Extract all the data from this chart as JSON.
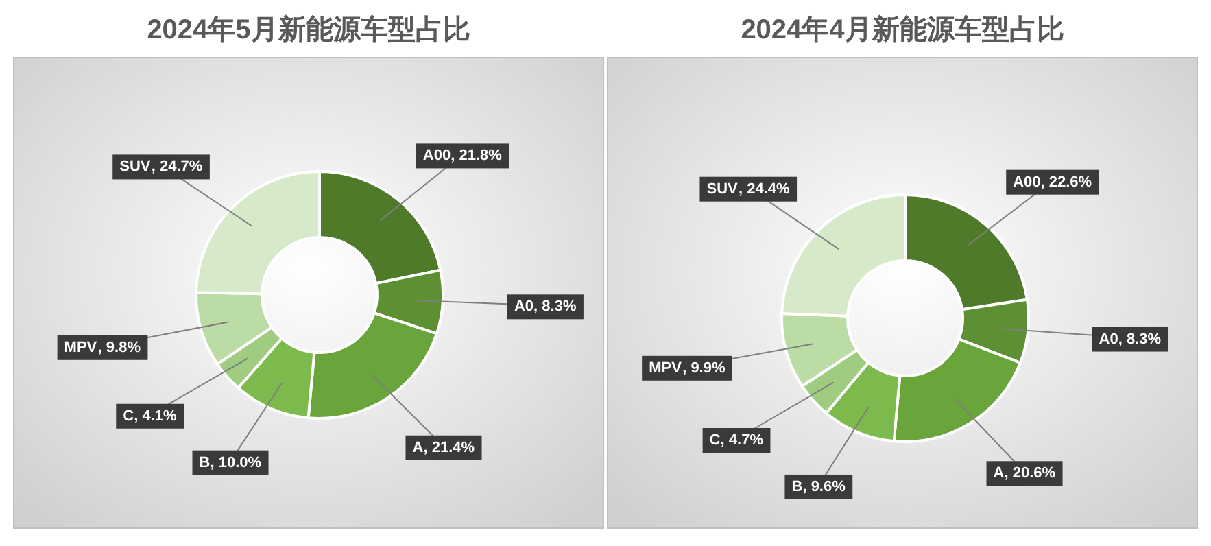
{
  "chart_data": [
    {
      "type": "donut",
      "title": "2024年5月新能源车型占比",
      "categories": [
        "A00",
        "A0",
        "A",
        "B",
        "C",
        "MPV",
        "SUV"
      ],
      "values": [
        21.8,
        8.3,
        21.4,
        10.0,
        4.1,
        9.8,
        24.7
      ],
      "colors": [
        "#4f7a2a",
        "#5c9033",
        "#6aa53c",
        "#7cba4d",
        "#9fcc80",
        "#bcdca5",
        "#d6e9c9"
      ],
      "value_labels": [
        ", 21.8%",
        ", 8.3%",
        ", 21.4%",
        ", 10.0%",
        ", 4.1%",
        ", 9.8%",
        ", 24.7%"
      ]
    },
    {
      "type": "donut",
      "title": "2024年4月新能源车型占比",
      "categories": [
        "A00",
        "A0",
        "A",
        "B",
        "C",
        "MPV",
        "SUV"
      ],
      "values": [
        22.6,
        8.3,
        20.6,
        9.6,
        4.7,
        9.9,
        24.4
      ],
      "colors": [
        "#4f7a2a",
        "#5c9033",
        "#6aa53c",
        "#7cba4d",
        "#9fcc80",
        "#bcdca5",
        "#d6e9c9"
      ],
      "value_labels": [
        ", 22.6%",
        ", 8.3%",
        ", 20.6%",
        ", 9.6%",
        ", 4.7%",
        ", 9.9%",
        ", 24.4%"
      ]
    }
  ]
}
